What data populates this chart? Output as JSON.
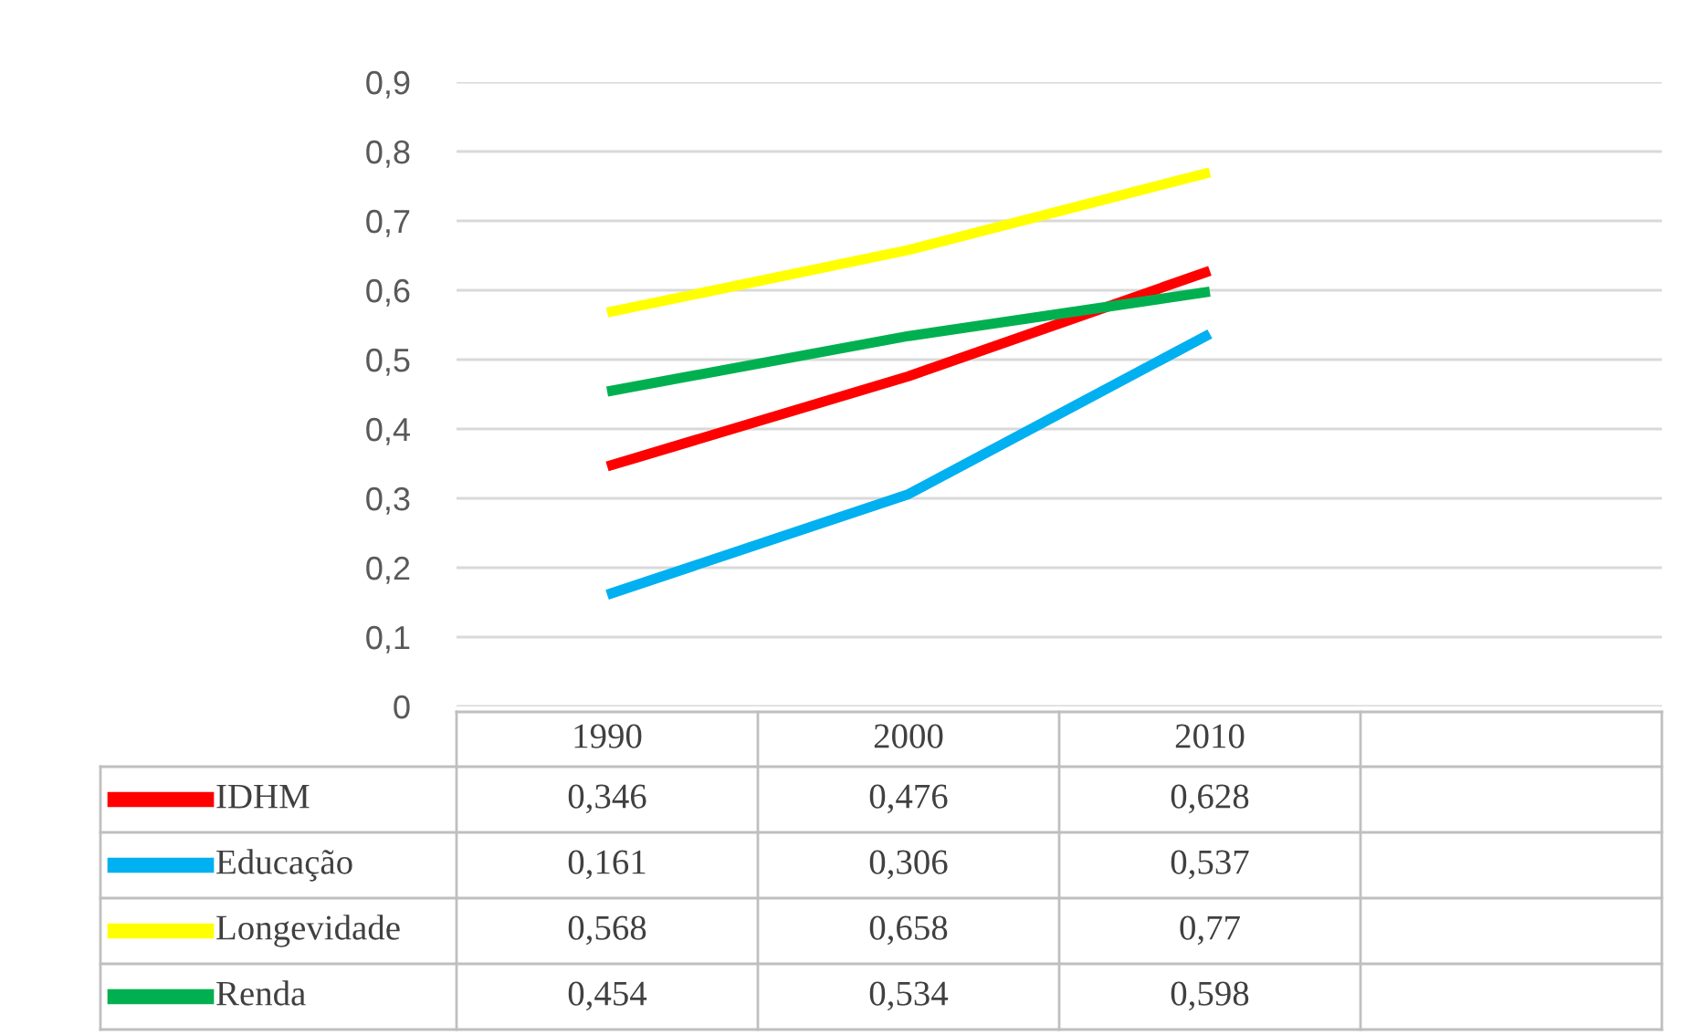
{
  "chart_data": {
    "type": "line",
    "categories": [
      "1990",
      "2000",
      "2010",
      null
    ],
    "ylim": [
      0,
      0.9
    ],
    "yticks": [
      0,
      {
        "value": 0.1,
        "label": "0,1"
      },
      {
        "value": 0.2,
        "label": "0,2"
      },
      {
        "value": 0.3,
        "label": "0,3"
      },
      {
        "value": 0.4,
        "label": "0,4"
      },
      {
        "value": 0.5,
        "label": "0,5"
      },
      {
        "value": 0.6,
        "label": "0,6"
      },
      {
        "value": 0.7,
        "label": "0,7"
      },
      {
        "value": 0.8,
        "label": "0,8"
      },
      {
        "value": 0.9,
        "label": "0,9"
      }
    ],
    "grid": "y",
    "legend": "bottom",
    "series": [
      {
        "name": "IDHM",
        "color": "#ff0000",
        "values": [
          0.346,
          0.476,
          0.628,
          null
        ],
        "value_labels": [
          "0,346",
          "0,476",
          "0,628",
          null
        ]
      },
      {
        "name": "Educação",
        "color": "#00b0f0",
        "values": [
          0.161,
          0.306,
          0.537,
          null
        ],
        "value_labels": [
          "0,161",
          "0,306",
          "0,537",
          null
        ]
      },
      {
        "name": "Longevidade",
        "color": "#ffff00",
        "values": [
          0.568,
          0.658,
          0.77,
          null
        ],
        "value_labels": [
          "0,568",
          "0,658",
          "0,77",
          null
        ]
      },
      {
        "name": "Renda",
        "color": "#00b050",
        "values": [
          0.454,
          0.534,
          0.598,
          null
        ],
        "value_labels": [
          "0,454",
          "0,534",
          "0,598",
          null
        ]
      }
    ]
  }
}
